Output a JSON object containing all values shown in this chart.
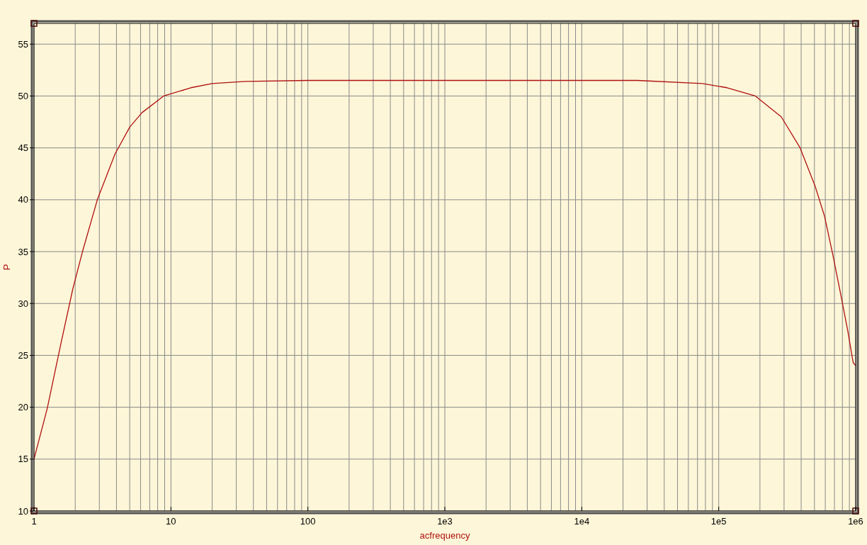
{
  "chart_data": {
    "type": "line",
    "xlabel": "acfrequency",
    "ylabel": "P",
    "log": "x",
    "grid": true,
    "marker": "none",
    "line_style": "solid",
    "xlim": [
      1,
      1000000
    ],
    "ylim": [
      10,
      57
    ],
    "xticks": [
      1,
      10,
      100,
      {
        "value": 1000,
        "label": "1e3"
      },
      {
        "value": 10000,
        "label": "1e4"
      },
      {
        "value": 100000,
        "label": "1e5"
      },
      {
        "value": 1000000,
        "label": "1e6"
      }
    ],
    "yticks": [
      10,
      15,
      20,
      25,
      30,
      35,
      40,
      45,
      50,
      55
    ],
    "series": [
      {
        "color": "#b01010",
        "x": [
          1,
          1.25,
          1.57,
          1.92,
          2.26,
          2.9,
          3.9,
          5,
          6.15,
          8.85,
          14,
          20,
          35,
          100,
          1000,
          10000,
          25500,
          76000,
          115000,
          185000,
          286000,
          393000,
          506000,
          593000,
          681000,
          780000,
          875000,
          959000,
          1000000
        ],
        "values": [
          15,
          19.9,
          26.1,
          31.4,
          35,
          40,
          44.4,
          47,
          48.4,
          50,
          50.8,
          51.2,
          51.4,
          51.5,
          51.5,
          51.5,
          51.5,
          51.2,
          50.8,
          50,
          48,
          45,
          41.3,
          38.4,
          34.7,
          30.8,
          27.4,
          24.3,
          24
        ]
      }
    ]
  }
}
